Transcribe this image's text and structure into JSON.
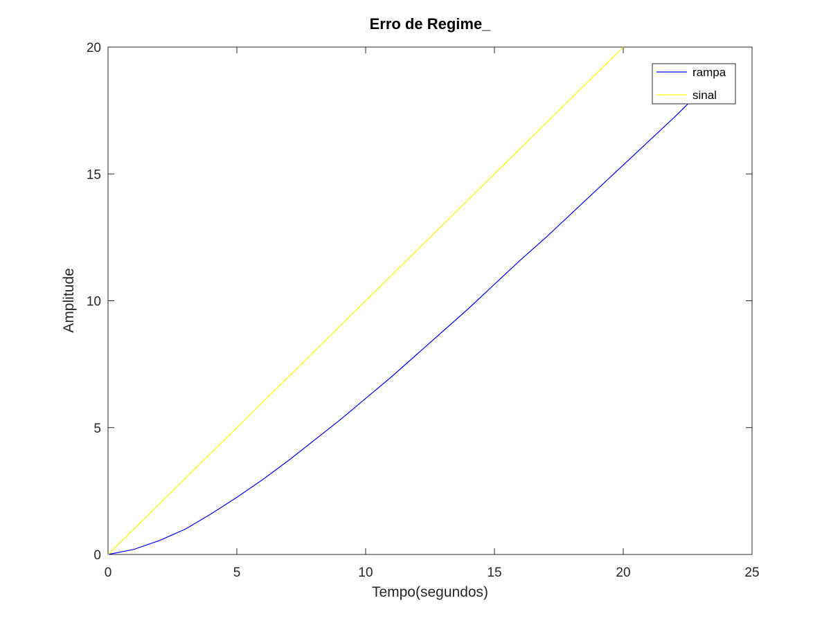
{
  "chart_data": {
    "type": "line",
    "title": "Erro de Regime_",
    "xlabel": "Tempo(segundos)",
    "ylabel": "Amplitude",
    "xlim": [
      0,
      25
    ],
    "ylim": [
      0,
      20
    ],
    "xticks": [
      0,
      5,
      10,
      15,
      20,
      25
    ],
    "yticks": [
      0,
      5,
      10,
      15,
      20
    ],
    "grid": false,
    "legend_position": "top-right",
    "series": [
      {
        "name": "rampa",
        "color": "#0000ff",
        "x": [
          0,
          1,
          2,
          3,
          4,
          5,
          6,
          7,
          8,
          9,
          10,
          11,
          12,
          13,
          14,
          15,
          16,
          17,
          18,
          19,
          20,
          21,
          22,
          23,
          23.8
        ],
        "y": [
          0,
          0.2,
          0.55,
          1.0,
          1.6,
          2.25,
          2.95,
          3.7,
          4.5,
          5.3,
          6.15,
          7.0,
          7.9,
          8.8,
          9.7,
          10.65,
          11.6,
          12.5,
          13.45,
          14.4,
          15.35,
          16.3,
          17.25,
          18.25,
          19.2
        ]
      },
      {
        "name": "sinal",
        "color": "#ffff00",
        "x": [
          0,
          20
        ],
        "y": [
          0,
          20
        ]
      }
    ]
  }
}
